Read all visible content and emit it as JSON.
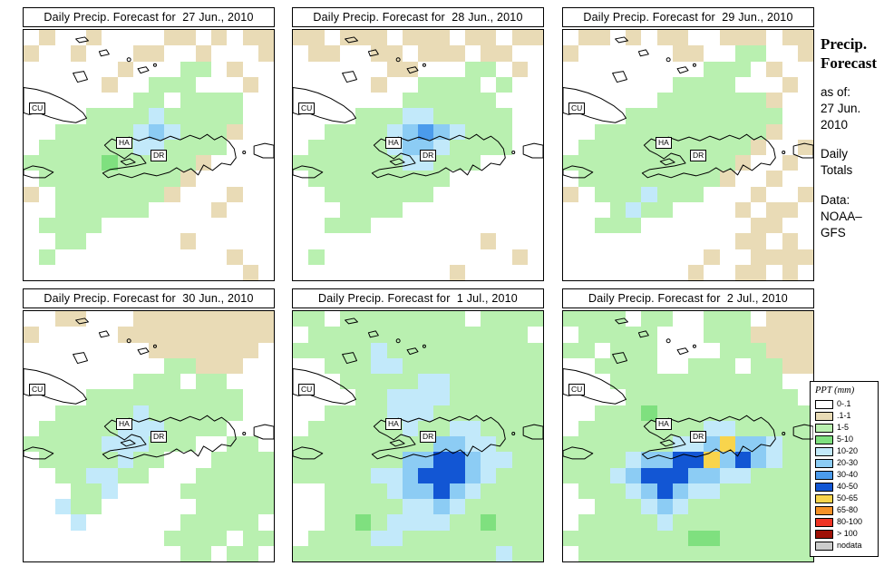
{
  "sidebar": {
    "title_line1": "Precip.",
    "title_line2": "Forecast",
    "as_of_label": "as of:",
    "as_of_date1": "27 Jun.",
    "as_of_date2": "2010",
    "totals_line1": "Daily",
    "totals_line2": "Totals",
    "data_label": "Data:",
    "data_source1": "NOAA–",
    "data_source2": "GFS"
  },
  "legend": {
    "title": "PPT (mm)",
    "items": [
      {
        "label": "0-.1",
        "color": "#FFFFFF"
      },
      {
        "label": ".1-1",
        "color": "#E9DBB6"
      },
      {
        "label": "1-5",
        "color": "#B9F0B0"
      },
      {
        "label": "5-10",
        "color": "#7FE07F"
      },
      {
        "label": "10-20",
        "color": "#C2E9FA"
      },
      {
        "label": "20-30",
        "color": "#8CCCF4"
      },
      {
        "label": "30-40",
        "color": "#4B9BEC"
      },
      {
        "label": "40-50",
        "color": "#1256D4"
      },
      {
        "label": "50-65",
        "color": "#F8D44C"
      },
      {
        "label": "65-80",
        "color": "#F69127"
      },
      {
        "label": "80-100",
        "color": "#EE3424"
      },
      {
        "label": "> 100",
        "color": "#9E1006"
      },
      {
        "label": "nodata",
        "color": "#CCCCCC"
      }
    ]
  },
  "map_labels": {
    "cuba": "CU",
    "haiti": "HA",
    "dominican": "DR"
  },
  "palette": {
    ".": "#FFFFFF",
    "t": "#E9DBB6",
    "g": "#B9F0B0",
    "G": "#7FE07F",
    "b": "#C2E9FA",
    "B": "#8CCCF4",
    "M": "#4B9BEC",
    "D": "#1256D4",
    "y": "#F8D44C",
    "o": "#F69127",
    "r": "#EE3424",
    "R": "#9E1006",
    "n": "#CCCCCC"
  },
  "panels": [
    {
      "title": "Daily Precip. Forecast for  27 Jun., 2010",
      "grid": [
        ".t..t....tt.t.tt",
        "t..t...tt..t...t",
        "......t...gg.t..",
        ".....t..ggg...t.",
        ".......gg.gggg..",
        "....ggggbggggg..",
        "..gggggbBbgggt..",
        ".ggggggbbgggg...",
        "gggggGgggggt....",
        ".gggggggggt.....",
        "t.gggggggt...t..",
        "..gggggg....t...",
        ".gggg...........",
        "..gg......t.....",
        ".g...........t..",
        "..............t."
      ]
    },
    {
      "title": "Daily Precip. Forecast for  28 Jun., 2010",
      "grid": [
        "tt.ttt.ttt.tt.tt",
        ".tt..tt.ttt.tt..",
        "......tt...gg.t.",
        ".....t..gggg.g..",
        ".......gggggg...",
        "....gggbbggggg..",
        "..ggggbBMBbggg..",
        ".gggggbBBbgggg..",
        "gggggggbbggg....",
        ".ggggggggg......",
        "..ggggggg.......",
        "...gggg.........",
        "..ggg...........",
        "............t...",
        ".g............t.",
        "..........t....."
      ]
    },
    {
      "title": "Daily Precip. Forecast for  29 Jun., 2010",
      "grid": [
        ".tt.t.tt..ttt.tt",
        "t......tt..gg..t",
        ".........ggg.t..",
        ".......gggg...t.",
        "......gggggggt..",
        "....gggggggggg..",
        "..gggggggggggt..",
        ".gggggggggggt..t",
        "gggggggggggt..t.",
        ".gggggggggt..t..",
        "t.gggbggg...t..t",
        "...gbgg....t.tt.",
        "..ggg.......tt..",
        "...........tt.t.",
        ".........t..tttt",
        "........t..tt.t."
      ]
    },
    {
      "title": "Daily Precip. Forecast for  30 Jun., 2010",
      "grid": [
        "..tt...ttttttttt",
        "t.....tttttttttt",
        "........ttttttt.",
        ".........ggttt..",
        ".......ggg.gg...",
        "....gggggggggg..",
        "..gggggbgggggg..",
        ".gggggbbbgggg...",
        "gggggbbbggg..gg.",
        ".gggggbgg...gggg",
        "..ggbbgg...ggggg",
        "...ggb....gggggg",
        "..bgg......ggggg",
        "...b......ggggg.",
        ".........gggg.gg",
        "..........gg.gg."
      ]
    },
    {
      "title": "Daily Precip. Forecast for  1 Jul., 2010",
      "grid": [
        "gg.gggggggg.gggg",
        ".gggggggggggggg.",
        "gggggbgggggggggg",
        "..gggbbggggggggg",
        "...gggggbbgggggg",
        "....ggbbbbgggggg",
        "..ggggbbbggggggg",
        ".ggggggbggbbgggg",
        "gggggggggBBbbggg",
        "gggggggBBDDBbbgg",
        "gggggbbBDDDBbggg",
        "..ggggbBBDBbgggg",
        "..gggggbbBbggggg",
        "..ggGgbbbbggGggg",
        ".ggggbbggggggggg",
        "gggggggggggggbgg"
      ]
    },
    {
      "title": "Daily Precip. Forecast for  2 Jul., 2010",
      "grid": [
        "gggg.gg..ggg.ttt",
        ".ggggg...gggtttt",
        "gg.ggg....gggttt",
        "..gggg..ggg.ggtt",
        "...ggggggggggg..",
        "....ggggggggggg.",
        "..gggGgggggggggg",
        ".ggggggggbbggggg",
        "gggggggbbByBBbgg",
        "ggggbBBDDyBDBbgg",
        "gggbBDDDBBbbgggg",
        ".gggbBDBbbgggggg",
        "..gggbBbgggggggg",
        ".gggggbggggggggg",
        "ggggggggGGgggggg",
        ".ggggggggggggggg"
      ]
    }
  ]
}
